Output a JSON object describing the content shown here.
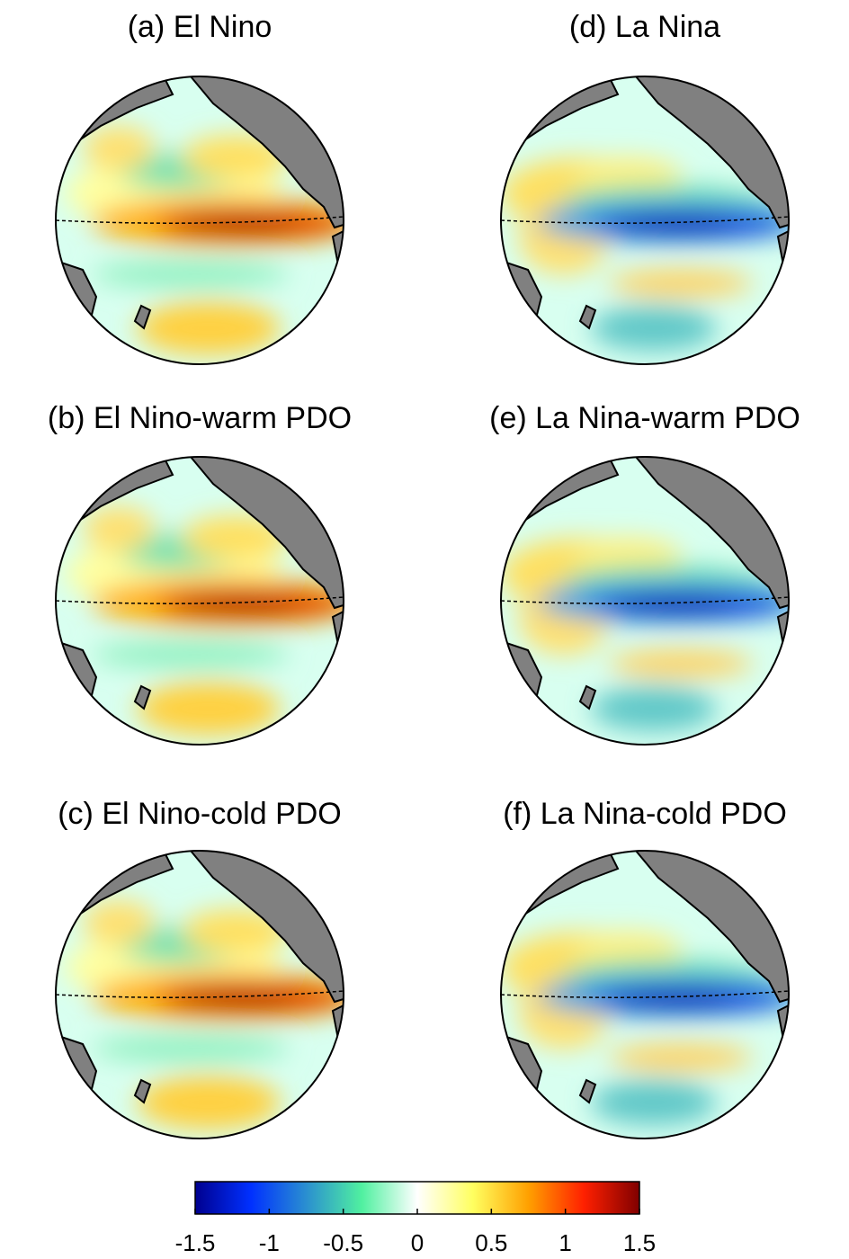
{
  "panels": [
    {
      "title": "(a)  El Nino"
    },
    {
      "title": "(b)  El Nino-warm PDO"
    },
    {
      "title": "(c)  El Nino-cold PDO"
    },
    {
      "title": "(d)  La Nina"
    },
    {
      "title": "(e)  La Nina-warm PDO"
    },
    {
      "title": "(f)  La Nina-cold PDO"
    }
  ],
  "colorbar": {
    "lim": [
      -1.5,
      1.5
    ],
    "ticks": [
      -1.5,
      -1,
      -0.5,
      0,
      0.5,
      1,
      1.5
    ],
    "colors": [
      "#00008f",
      "#0030ff",
      "#2a8fd0",
      "#50f0a0",
      "#ffffff",
      "#ffff60",
      "#ffa000",
      "#ff2000",
      "#800000"
    ]
  }
}
